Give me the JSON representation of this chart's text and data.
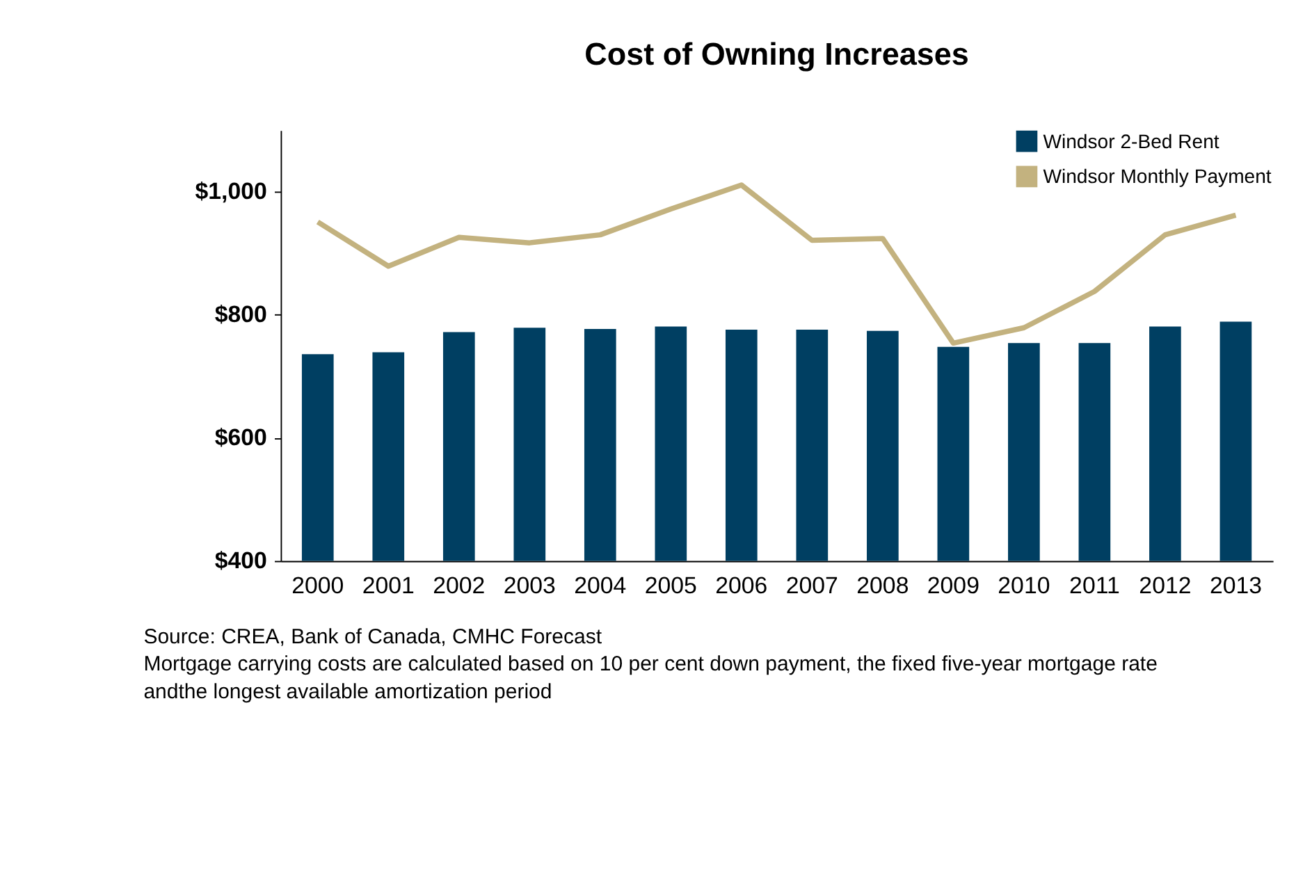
{
  "chart_data": {
    "type": "bar",
    "title": "Cost of Owning Increases",
    "categories": [
      "2000",
      "2001",
      "2002",
      "2003",
      "2004",
      "2005",
      "2006",
      "2007",
      "2008",
      "2009",
      "2010",
      "2011",
      "2012",
      "2013"
    ],
    "series": [
      {
        "name": "Windsor 2-Bed Rent",
        "color": "#003f62",
        "values": [
          736,
          739,
          772,
          779,
          777,
          781,
          776,
          776,
          774,
          748,
          754,
          754,
          781,
          789
        ]
      },
      {
        "name": "Windsor Monthly Payment",
        "type": "line",
        "color": "#c3b27f",
        "values": [
          951,
          879,
          926,
          917,
          930,
          972,
          1011,
          921,
          924,
          754,
          779,
          838,
          930,
          962
        ]
      }
    ],
    "ylim": [
      400,
      1100
    ],
    "yticks": [
      {
        "value": 400,
        "label": "$400"
      },
      {
        "value": 600,
        "label": "$600"
      },
      {
        "value": 800,
        "label": "$800"
      },
      {
        "value": 1000,
        "label": "$1,000"
      }
    ],
    "grid": false,
    "legend": "top right",
    "marker": "none",
    "line_style": "solid",
    "annotations": [
      "Source:  CREA, Bank of Canada, CMHC Forecast",
      "Mortgage carrying costs are calculated based on 10 per cent down payment, the fixed five-year mortgage rate",
      "andthe longest available amortization period"
    ]
  }
}
